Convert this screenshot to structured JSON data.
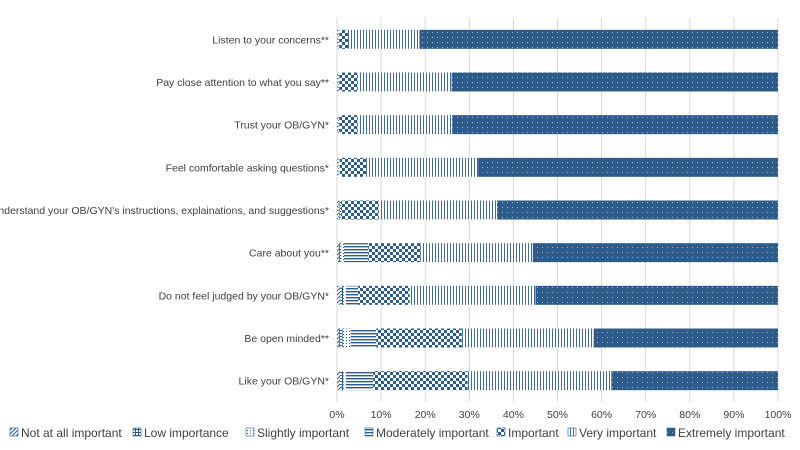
{
  "chart_data": {
    "type": "bar",
    "orientation": "horizontal",
    "stacked": "percent",
    "title": "",
    "xlabel": "",
    "ylabel": "",
    "xlim": [
      0,
      100
    ],
    "grid": true,
    "legend_position": "bottom",
    "x_ticks": [
      "0%",
      "10%",
      "20%",
      "30%",
      "40%",
      "50%",
      "60%",
      "70%",
      "80%",
      "90%",
      "100%"
    ],
    "categories": [
      "Listen to your concerns**",
      "Pay close attention to what you say**",
      "Trust your OB/GYN*",
      "Feel comfortable asking questions*",
      "Understand your OB/GYN's instructions, explainations, and suggestions*",
      "Care about you**",
      "Do not feel judged by your OB/GYN*",
      "Be open minded**",
      "Like your OB/GYN*"
    ],
    "series": [
      {
        "name": "Not at all important",
        "color": "#2e5c8a",
        "pattern": "diag",
        "values": [
          0.2,
          0.2,
          0.2,
          0.2,
          0.3,
          0.5,
          0.8,
          0.5,
          0.7
        ]
      },
      {
        "name": "Low importance",
        "color": "#2e5c8a",
        "pattern": "grid",
        "values": [
          0.2,
          0.2,
          0.2,
          0.2,
          0.3,
          0.5,
          0.6,
          0.8,
          0.8
        ]
      },
      {
        "name": "Slightly important",
        "color": "#2e5c8a",
        "pattern": "dots",
        "values": [
          0.1,
          0.1,
          0.1,
          0.2,
          0.3,
          0.6,
          0.6,
          1.8,
          0.5
        ]
      },
      {
        "name": "Moderately important",
        "color": "#2e5c8a",
        "pattern": "hlines",
        "values": [
          0.0,
          0.0,
          0.0,
          0.0,
          0.0,
          5.5,
          2.8,
          5.8,
          6.2
        ]
      },
      {
        "name": "Important",
        "color": "#2e5c8a",
        "pattern": "checker",
        "values": [
          2.0,
          4.2,
          4.2,
          6.0,
          8.6,
          11.8,
          11.7,
          19.4,
          21.4
        ]
      },
      {
        "name": "Very important",
        "color": "#2e5c8a",
        "pattern": "vlines",
        "values": [
          16.2,
          21.3,
          21.4,
          25.4,
          26.8,
          25.5,
          28.5,
          29.9,
          32.6
        ]
      },
      {
        "name": "Extremely important",
        "color": "#2e5c8a",
        "pattern": "solid",
        "values": [
          81.3,
          74.0,
          73.9,
          68.0,
          63.7,
          55.6,
          55.0,
          41.8,
          37.8
        ]
      }
    ]
  }
}
